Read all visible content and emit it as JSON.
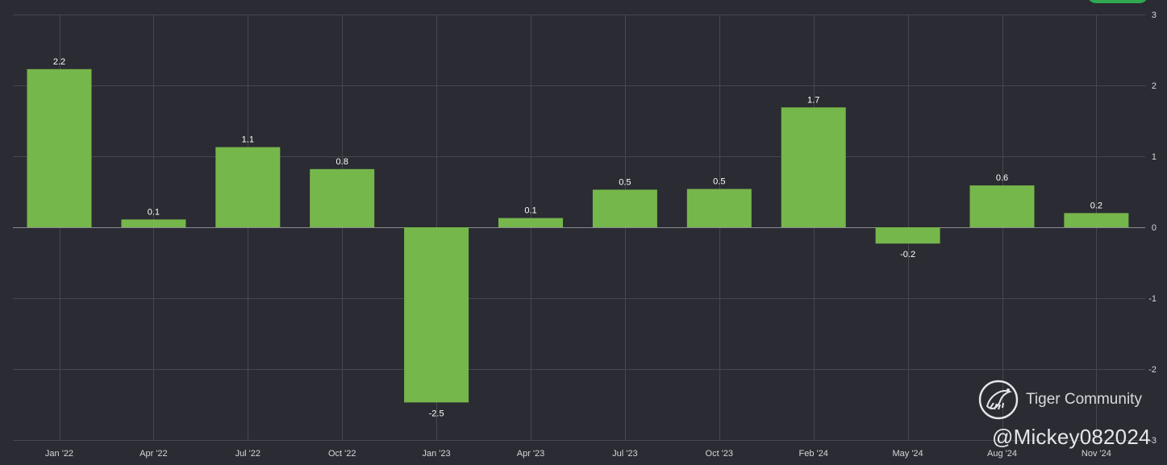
{
  "chart_data": {
    "type": "bar",
    "categories": [
      "Jan '22",
      "Apr '22",
      "Jul '22",
      "Oct '22",
      "Jan '23",
      "Apr '23",
      "Jul '23",
      "Oct '23",
      "Feb '24",
      "May '24",
      "Aug '24",
      "Nov '24"
    ],
    "values": [
      2.23,
      0.11,
      1.13,
      0.82,
      -2.47,
      0.13,
      0.53,
      0.54,
      1.69,
      -0.23,
      0.59,
      0.2
    ],
    "value_labels": [
      "2.2",
      "0.1",
      "1.1",
      "0.8",
      "-2.5",
      "0.1",
      "0.5",
      "0.5",
      "1.7",
      "-0.2",
      "0.6",
      "0.2"
    ],
    "y_ticks": [
      "3",
      "2",
      "1",
      "0",
      "-1",
      "-2",
      "-3"
    ],
    "ylim": [
      -3,
      3
    ],
    "y_axis_side": "right",
    "grid": true,
    "bar_color": "#76b74b",
    "background_color": "#2a2b33"
  },
  "watermark": {
    "brand": "Tiger Community",
    "handle": "@Mickey082024",
    "logo_icon": "tiger-logo-icon"
  },
  "top_right_badge_color": "#2fa84f"
}
